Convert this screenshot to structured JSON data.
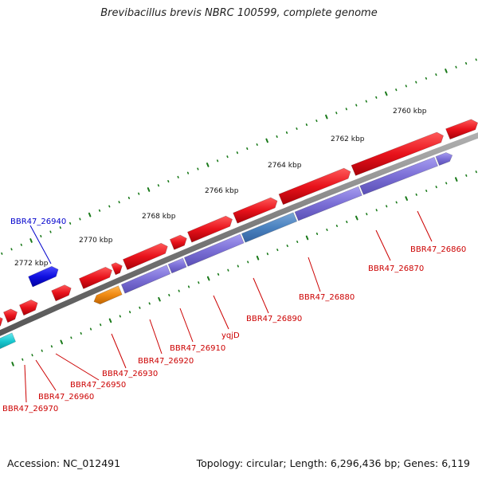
{
  "title": "Brevibacillus brevis NBRC 100599, complete genome",
  "accession": "Accession: NC_012491",
  "topology": "Topology: circular; Length: 6,296,436 bp; Genes: 6,119",
  "ticks": [
    {
      "label": "2760 kbp"
    },
    {
      "label": "2762 kbp"
    },
    {
      "label": "2764 kbp"
    },
    {
      "label": "2766 kbp"
    },
    {
      "label": "2768 kbp"
    },
    {
      "label": "2770 kbp"
    },
    {
      "label": "2772 kbp"
    }
  ],
  "gene_labels": [
    {
      "name": "BBR47_26940",
      "color": "#0000cc"
    },
    {
      "name": "BBR47_26860",
      "color": "#cc0000"
    },
    {
      "name": "BBR47_26870",
      "color": "#cc0000"
    },
    {
      "name": "BBR47_26880",
      "color": "#cc0000"
    },
    {
      "name": "BBR47_26890",
      "color": "#cc0000"
    },
    {
      "name": "yqjD",
      "color": "#cc0000"
    },
    {
      "name": "BBR47_26910",
      "color": "#cc0000"
    },
    {
      "name": "BBR47_26920",
      "color": "#cc0000"
    },
    {
      "name": "BBR47_26930",
      "color": "#cc0000"
    },
    {
      "name": "BBR47_26950",
      "color": "#cc0000"
    },
    {
      "name": "BBR47_26960",
      "color": "#cc0000"
    },
    {
      "name": "BBR47_26970",
      "color": "#cc0000"
    }
  ],
  "colors": {
    "forward_gene": "#e8121b",
    "reverse_gene": "#7b6fd6",
    "blue_gene": "#1010e0",
    "orange_gene": "#f08a12",
    "olive_gene": "#6f8f1e",
    "cyan_gene": "#18c8d0",
    "backbone": "#777777",
    "tick": "#1a7a1a"
  }
}
